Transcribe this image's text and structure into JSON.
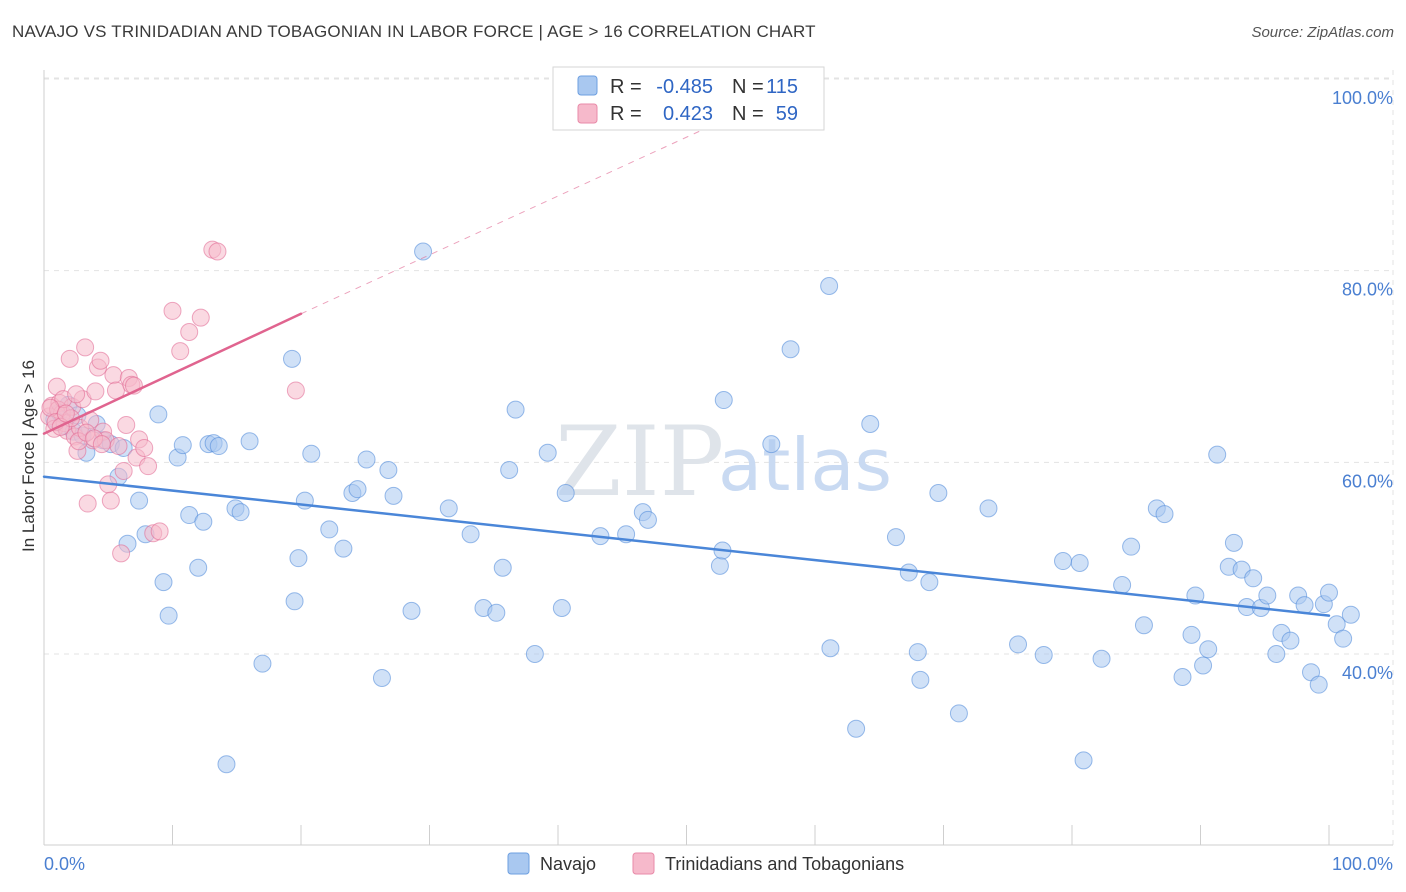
{
  "header": {
    "title": "NAVAJO VS TRINIDADIAN AND TOBAGONIAN IN LABOR FORCE | AGE > 16 CORRELATION CHART",
    "source": "Source: ZipAtlas.com"
  },
  "watermark": {
    "part1": "ZIP",
    "part2": "atlas"
  },
  "legend_top": {
    "rows": [
      {
        "r_label": "R =",
        "r_value": "-0.485",
        "n_label": "N =",
        "n_value": "115",
        "color": "#a9c8f0"
      },
      {
        "r_label": "R =",
        "r_value": "0.423",
        "n_label": "N =",
        "n_value": "59",
        "color": "#f6b9cb"
      }
    ]
  },
  "legend_bottom": {
    "items": [
      {
        "label": "Navajo",
        "color": "#a9c8f0"
      },
      {
        "label": "Trinidadians and Tobagonians",
        "color": "#f6b9cb"
      }
    ]
  },
  "chart_data": {
    "type": "scatter",
    "title": "NAVAJO VS TRINIDADIAN AND TOBAGONIAN IN LABOR FORCE | AGE > 16 CORRELATION CHART",
    "ylabel": "In Labor Force | Age > 16",
    "xlabel": "",
    "xlim": [
      0,
      100
    ],
    "ylim": [
      20,
      102
    ],
    "x_tick_labels": [
      "0.0%",
      "100.0%"
    ],
    "y_ticks": [
      40,
      60,
      80,
      100
    ],
    "y_tick_labels": [
      "40.0%",
      "60.0%",
      "80.0%",
      "100.0%"
    ],
    "grid": true,
    "legend_position": "top-center",
    "series": [
      {
        "name": "Navajo",
        "color": "#4a86d8",
        "fill": "#a9c8f0",
        "trend": {
          "x0": 0,
          "y0": 58.5,
          "x1": 100,
          "y1": 44.0,
          "style": "solid"
        },
        "points": [
          [
            0.8,
            64.5
          ],
          [
            1.2,
            65.2
          ],
          [
            1.6,
            63.8
          ],
          [
            1.9,
            66.0
          ],
          [
            2.3,
            63.2
          ],
          [
            2.6,
            64.9
          ],
          [
            3.0,
            62.8
          ],
          [
            3.3,
            61.0
          ],
          [
            4.1,
            64.0
          ],
          [
            4.6,
            62.3
          ],
          [
            5.2,
            61.9
          ],
          [
            5.8,
            58.5
          ],
          [
            6.2,
            61.5
          ],
          [
            6.5,
            51.5
          ],
          [
            7.4,
            56.0
          ],
          [
            7.9,
            52.5
          ],
          [
            8.9,
            65.0
          ],
          [
            9.3,
            47.5
          ],
          [
            9.7,
            44.0
          ],
          [
            10.4,
            60.5
          ],
          [
            10.8,
            61.8
          ],
          [
            11.3,
            54.5
          ],
          [
            12.0,
            49.0
          ],
          [
            12.4,
            53.8
          ],
          [
            12.8,
            61.9
          ],
          [
            13.2,
            62.0
          ],
          [
            13.6,
            61.7
          ],
          [
            14.2,
            28.5
          ],
          [
            14.9,
            55.2
          ],
          [
            15.3,
            54.8
          ],
          [
            16.0,
            62.2
          ],
          [
            17.0,
            39.0
          ],
          [
            19.3,
            70.8
          ],
          [
            19.5,
            45.5
          ],
          [
            19.8,
            50.0
          ],
          [
            20.3,
            56.0
          ],
          [
            20.8,
            60.9
          ],
          [
            22.2,
            53.0
          ],
          [
            23.3,
            51.0
          ],
          [
            24.0,
            56.8
          ],
          [
            24.4,
            57.2
          ],
          [
            25.1,
            60.3
          ],
          [
            26.3,
            37.5
          ],
          [
            26.8,
            59.2
          ],
          [
            27.2,
            56.5
          ],
          [
            28.6,
            44.5
          ],
          [
            29.5,
            82.0
          ],
          [
            31.5,
            55.2
          ],
          [
            33.2,
            52.5
          ],
          [
            34.2,
            44.8
          ],
          [
            35.2,
            44.3
          ],
          [
            35.7,
            49.0
          ],
          [
            36.2,
            59.2
          ],
          [
            36.7,
            65.5
          ],
          [
            38.2,
            40.0
          ],
          [
            39.2,
            61.0
          ],
          [
            40.3,
            44.8
          ],
          [
            40.6,
            56.8
          ],
          [
            43.3,
            52.3
          ],
          [
            45.3,
            52.5
          ],
          [
            46.6,
            54.8
          ],
          [
            47.0,
            54.0
          ],
          [
            52.6,
            49.2
          ],
          [
            52.8,
            50.8
          ],
          [
            52.9,
            66.5
          ],
          [
            56.6,
            61.9
          ],
          [
            58.1,
            71.8
          ],
          [
            61.1,
            78.4
          ],
          [
            61.2,
            40.6
          ],
          [
            63.2,
            32.2
          ],
          [
            64.3,
            64.0
          ],
          [
            66.3,
            52.2
          ],
          [
            67.3,
            48.5
          ],
          [
            68.0,
            40.2
          ],
          [
            68.2,
            37.3
          ],
          [
            68.9,
            47.5
          ],
          [
            69.6,
            56.8
          ],
          [
            71.2,
            33.8
          ],
          [
            73.5,
            55.2
          ],
          [
            75.8,
            41.0
          ],
          [
            77.8,
            39.9
          ],
          [
            79.3,
            49.7
          ],
          [
            80.6,
            49.5
          ],
          [
            80.9,
            28.9
          ],
          [
            82.3,
            39.5
          ],
          [
            83.9,
            47.2
          ],
          [
            84.6,
            51.2
          ],
          [
            85.6,
            43.0
          ],
          [
            86.6,
            55.2
          ],
          [
            87.2,
            54.6
          ],
          [
            88.6,
            37.6
          ],
          [
            89.3,
            42.0
          ],
          [
            89.6,
            46.1
          ],
          [
            90.2,
            38.8
          ],
          [
            90.6,
            40.5
          ],
          [
            91.3,
            60.8
          ],
          [
            92.2,
            49.1
          ],
          [
            92.6,
            51.6
          ],
          [
            93.2,
            48.8
          ],
          [
            93.6,
            44.9
          ],
          [
            94.1,
            47.9
          ],
          [
            94.7,
            44.8
          ],
          [
            95.2,
            46.1
          ],
          [
            95.9,
            40.0
          ],
          [
            96.3,
            42.2
          ],
          [
            97.0,
            41.4
          ],
          [
            97.6,
            46.1
          ],
          [
            98.1,
            45.1
          ],
          [
            98.6,
            38.1
          ],
          [
            99.2,
            36.8
          ],
          [
            99.6,
            45.2
          ],
          [
            100.0,
            46.4
          ],
          [
            100.6,
            43.1
          ],
          [
            101.1,
            41.6
          ],
          [
            101.7,
            44.1
          ]
        ]
      },
      {
        "name": "Trinidadians and Tobagonians",
        "color": "#e0648f",
        "fill": "#f6b9cb",
        "trend": {
          "x0": 0,
          "y0": 63.0,
          "x1": 20,
          "y1": 75.5,
          "style": "solid",
          "ext_x1": 55,
          "ext_y1": 97.0,
          "ext_style": "dashed"
        },
        "points": [
          [
            0.4,
            64.8
          ],
          [
            0.6,
            65.9
          ],
          [
            0.8,
            63.5
          ],
          [
            1.0,
            67.9
          ],
          [
            1.2,
            66.2
          ],
          [
            1.4,
            65.1
          ],
          [
            1.6,
            64.1
          ],
          [
            1.8,
            63.3
          ],
          [
            2.0,
            70.8
          ],
          [
            2.2,
            65.8
          ],
          [
            2.4,
            62.7
          ],
          [
            2.6,
            61.2
          ],
          [
            2.8,
            63.6
          ],
          [
            3.0,
            66.6
          ],
          [
            3.2,
            72.0
          ],
          [
            3.4,
            55.7
          ],
          [
            3.6,
            64.4
          ],
          [
            3.8,
            62.3
          ],
          [
            4.0,
            67.4
          ],
          [
            4.2,
            69.9
          ],
          [
            4.4,
            70.6
          ],
          [
            4.6,
            63.2
          ],
          [
            4.8,
            62.3
          ],
          [
            5.0,
            57.7
          ],
          [
            5.2,
            56.0
          ],
          [
            5.4,
            69.1
          ],
          [
            5.6,
            67.5
          ],
          [
            5.8,
            61.7
          ],
          [
            6.0,
            50.5
          ],
          [
            6.2,
            59.1
          ],
          [
            6.4,
            63.9
          ],
          [
            6.6,
            68.8
          ],
          [
            6.8,
            68.1
          ],
          [
            7.0,
            68.0
          ],
          [
            7.2,
            60.5
          ],
          [
            7.4,
            62.4
          ],
          [
            7.8,
            61.5
          ],
          [
            8.1,
            59.6
          ],
          [
            8.5,
            52.6
          ],
          [
            9.0,
            52.8
          ],
          [
            10.0,
            75.8
          ],
          [
            10.6,
            71.6
          ],
          [
            11.3,
            73.6
          ],
          [
            12.2,
            75.1
          ],
          [
            13.1,
            82.2
          ],
          [
            13.5,
            82.0
          ],
          [
            19.6,
            67.5
          ],
          [
            1.1,
            65.5
          ],
          [
            1.5,
            66.6
          ],
          [
            2.1,
            64.6
          ],
          [
            2.7,
            62.2
          ],
          [
            3.3,
            63.1
          ],
          [
            3.9,
            62.5
          ],
          [
            4.5,
            61.9
          ],
          [
            0.5,
            65.7
          ],
          [
            0.9,
            64.2
          ],
          [
            1.3,
            63.7
          ],
          [
            1.7,
            65.1
          ],
          [
            2.5,
            67.1
          ]
        ]
      }
    ]
  }
}
